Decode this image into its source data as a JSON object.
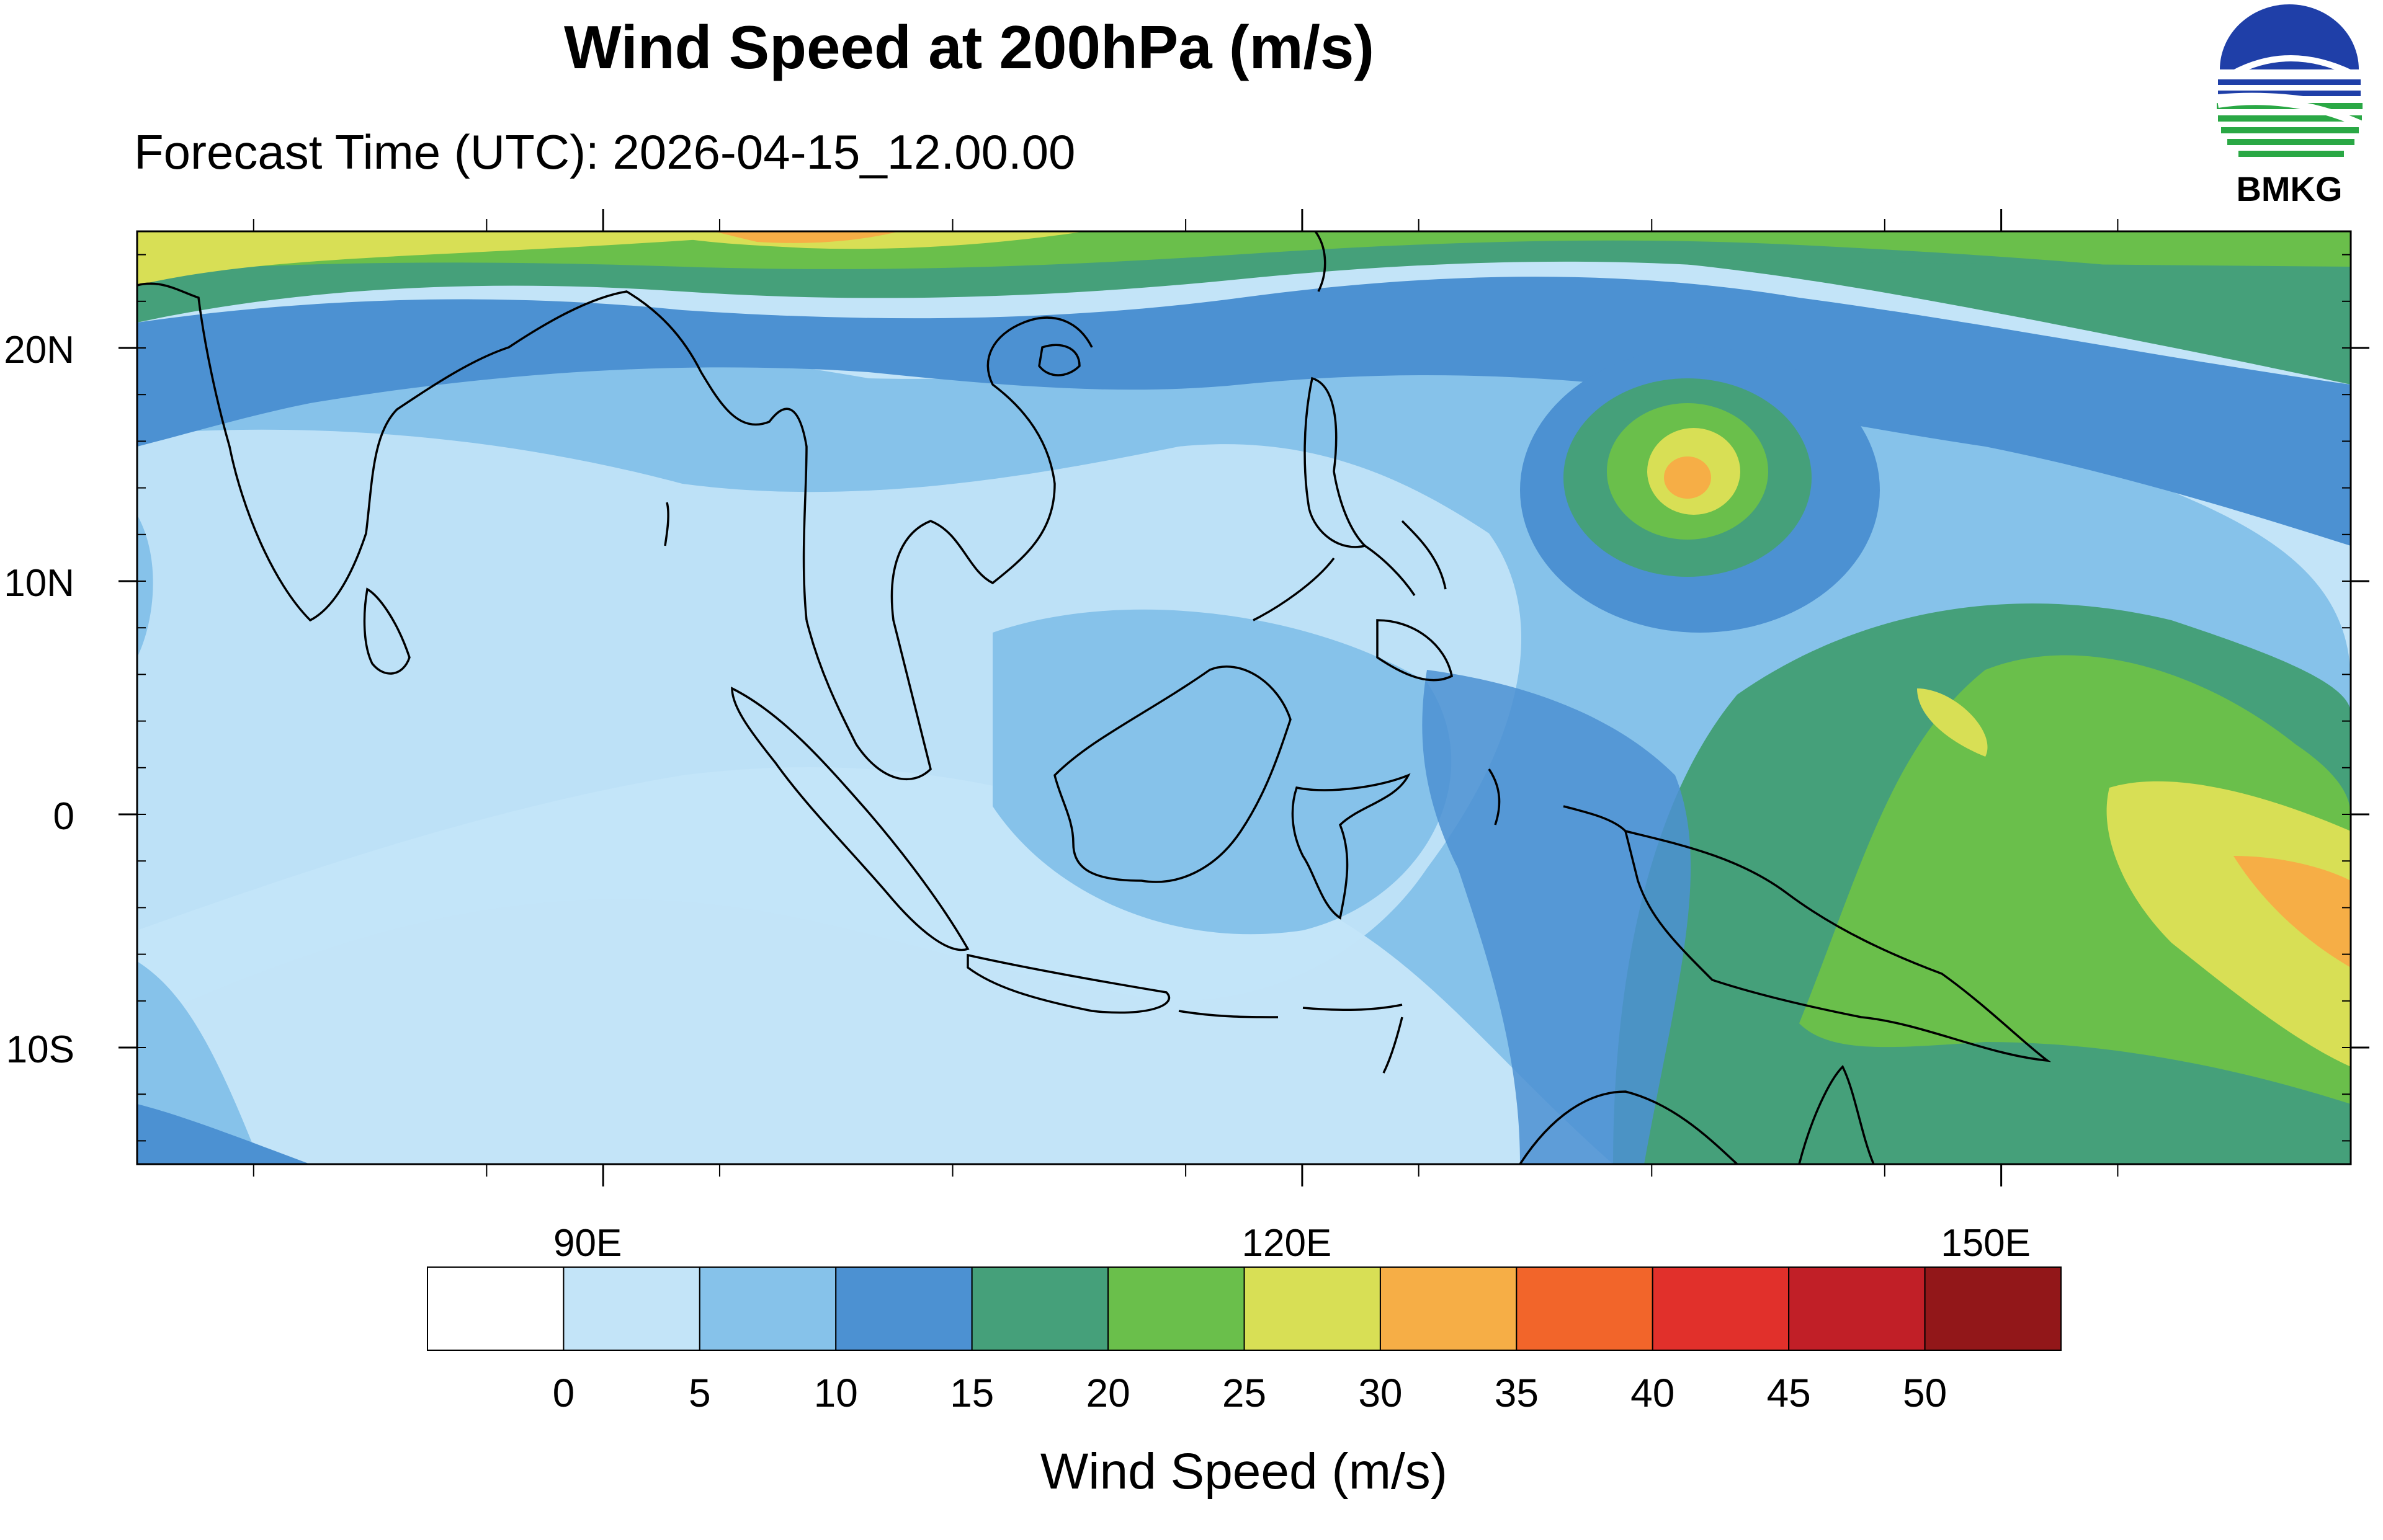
{
  "title": "Wind Speed at 200hPa (m/s)",
  "subtitle": "Forecast Time (UTC): 2026-04-15_12.00.00",
  "logo": {
    "text": "BMKG",
    "icon": "bmkg-logo-icon",
    "colors": [
      "#1f3fa8",
      "#2aa845"
    ]
  },
  "map": {
    "lon_range": [
      70,
      165
    ],
    "lat_range": [
      -15,
      25
    ],
    "lat_ticks": [
      {
        "value": 20,
        "label": "20N"
      },
      {
        "value": 10,
        "label": "10N"
      },
      {
        "value": 0,
        "label": "0"
      },
      {
        "value": -10,
        "label": "10S"
      }
    ],
    "lon_ticks": [
      {
        "value": 90,
        "label": "90E"
      },
      {
        "value": 120,
        "label": "120E"
      },
      {
        "value": 150,
        "label": "150E"
      }
    ],
    "coastline_color": "#000000"
  },
  "legend": {
    "title": "Wind Speed (m/s)",
    "labels": [
      "0",
      "5",
      "10",
      "15",
      "20",
      "25",
      "30",
      "35",
      "40",
      "45",
      "50"
    ],
    "colors": [
      "#ffffff",
      "#c3e4f8",
      "#86c2ea",
      "#4c91d2",
      "#45a07a",
      "#6abf4b",
      "#d8df55",
      "#f6ae46",
      "#f2652a",
      "#e1302b",
      "#c11f27",
      "#921719"
    ]
  }
}
